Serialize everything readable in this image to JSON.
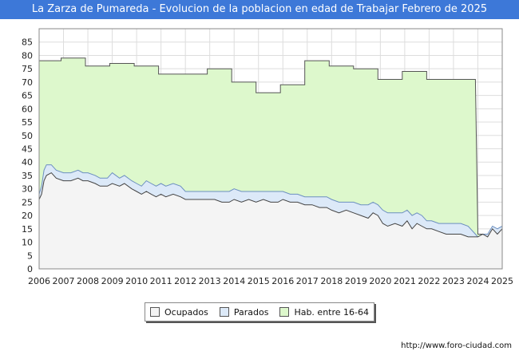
{
  "chart_data": {
    "type": "area",
    "title": "La Zarza de Pumareda - Evolucion de la poblacion en edad de Trabajar Febrero de 2025",
    "xlabel": "",
    "ylabel": "",
    "xlim": [
      2006,
      2025
    ],
    "ylim": [
      0,
      90
    ],
    "yticks": [
      0,
      5,
      10,
      15,
      20,
      25,
      30,
      35,
      40,
      45,
      50,
      55,
      60,
      65,
      70,
      75,
      80,
      85
    ],
    "xticks": [
      "2006",
      "2007",
      "2008",
      "2009",
      "2010",
      "2011",
      "2012",
      "2013",
      "2014",
      "2015",
      "2016",
      "2017",
      "2018",
      "2019",
      "2020",
      "2021",
      "2022",
      "2023",
      "2024",
      "2025"
    ],
    "grid": true,
    "legend_position": "bottom",
    "series": [
      {
        "name": "Ocupados",
        "color": "#f4f4f4",
        "stroke": "#444444",
        "x": [
          2006.0,
          2006.1,
          2006.2,
          2006.3,
          2006.5,
          2006.7,
          2007.0,
          2007.3,
          2007.6,
          2007.8,
          2008.0,
          2008.3,
          2008.5,
          2008.8,
          2009.0,
          2009.3,
          2009.5,
          2009.8,
          2010.0,
          2010.2,
          2010.4,
          2010.6,
          2010.8,
          2011.0,
          2011.2,
          2011.5,
          2011.8,
          2012.0,
          2012.3,
          2012.6,
          2012.9,
          2013.2,
          2013.5,
          2013.8,
          2014.0,
          2014.3,
          2014.6,
          2014.9,
          2015.2,
          2015.5,
          2015.8,
          2016.0,
          2016.3,
          2016.6,
          2016.9,
          2017.2,
          2017.5,
          2017.8,
          2018.0,
          2018.3,
          2018.6,
          2018.9,
          2019.2,
          2019.5,
          2019.7,
          2019.9,
          2020.1,
          2020.3,
          2020.6,
          2020.9,
          2021.1,
          2021.3,
          2021.5,
          2021.7,
          2021.9,
          2022.1,
          2022.4,
          2022.7,
          2023.0,
          2023.3,
          2023.6,
          2023.9,
          2024.0,
          2024.2,
          2024.4,
          2024.6,
          2024.8,
          2025.0
        ],
        "values": [
          26,
          28,
          33,
          35,
          36,
          34,
          33,
          33,
          34,
          33,
          33,
          32,
          31,
          31,
          32,
          31,
          32,
          30,
          29,
          28,
          29,
          28,
          27,
          28,
          27,
          28,
          27,
          26,
          26,
          26,
          26,
          26,
          25,
          25,
          26,
          25,
          26,
          25,
          26,
          25,
          25,
          26,
          25,
          25,
          24,
          24,
          23,
          23,
          22,
          21,
          22,
          21,
          20,
          19,
          21,
          20,
          17,
          16,
          17,
          16,
          18,
          15,
          17,
          16,
          15,
          15,
          14,
          13,
          13,
          13,
          12,
          12,
          12,
          13,
          12,
          15,
          13,
          15
        ]
      },
      {
        "name": "Parados",
        "color": "#dce9f8",
        "stroke": "#6c8fc0",
        "x": [
          2006.0,
          2006.1,
          2006.2,
          2006.3,
          2006.5,
          2006.7,
          2007.0,
          2007.3,
          2007.6,
          2007.8,
          2008.0,
          2008.3,
          2008.5,
          2008.8,
          2009.0,
          2009.3,
          2009.5,
          2009.8,
          2010.0,
          2010.2,
          2010.4,
          2010.6,
          2010.8,
          2011.0,
          2011.2,
          2011.5,
          2011.8,
          2012.0,
          2012.3,
          2012.6,
          2012.9,
          2013.2,
          2013.5,
          2013.8,
          2014.0,
          2014.3,
          2014.6,
          2014.9,
          2015.2,
          2015.5,
          2015.8,
          2016.0,
          2016.3,
          2016.6,
          2016.9,
          2017.2,
          2017.5,
          2017.8,
          2018.0,
          2018.3,
          2018.6,
          2018.9,
          2019.2,
          2019.5,
          2019.7,
          2019.9,
          2020.1,
          2020.3,
          2020.6,
          2020.9,
          2021.1,
          2021.3,
          2021.5,
          2021.7,
          2021.9,
          2022.1,
          2022.4,
          2022.7,
          2023.0,
          2023.3,
          2023.6,
          2023.9,
          2024.0,
          2024.2,
          2024.4,
          2024.6,
          2024.8,
          2025.0
        ],
        "values": [
          2,
          3,
          4,
          4,
          3,
          3,
          3,
          3,
          3,
          3,
          3,
          3,
          3,
          3,
          4,
          3,
          3,
          3,
          3,
          3,
          4,
          4,
          4,
          4,
          4,
          4,
          4,
          3,
          3,
          3,
          3,
          3,
          4,
          4,
          4,
          4,
          3,
          4,
          3,
          4,
          4,
          3,
          3,
          3,
          3,
          3,
          4,
          4,
          4,
          4,
          3,
          4,
          4,
          5,
          4,
          4,
          5,
          5,
          4,
          5,
          4,
          5,
          4,
          4,
          3,
          3,
          3,
          4,
          4,
          4,
          4,
          1,
          0,
          0,
          1,
          1,
          2,
          1
        ]
      },
      {
        "name": "Hab. entre 16-64",
        "color": "#ddf8cc",
        "stroke": "#555555",
        "x": [
          2006.0,
          2006.9,
          2006.9,
          2007.9,
          2007.9,
          2008.9,
          2008.9,
          2009.9,
          2009.9,
          2010.9,
          2010.9,
          2011.9,
          2011.9,
          2012.9,
          2012.9,
          2013.9,
          2013.9,
          2014.9,
          2014.9,
          2015.9,
          2015.9,
          2016.9,
          2016.9,
          2017.9,
          2017.9,
          2018.9,
          2018.9,
          2019.9,
          2019.9,
          2020.9,
          2020.9,
          2021.9,
          2021.9,
          2022.9,
          2022.9,
          2023.9,
          2024.0,
          2025.0
        ],
        "values": [
          78,
          78,
          79,
          79,
          76,
          76,
          77,
          77,
          76,
          76,
          73,
          73,
          73,
          73,
          75,
          75,
          70,
          70,
          66,
          66,
          69,
          69,
          78,
          78,
          76,
          76,
          75,
          75,
          71,
          71,
          74,
          74,
          71,
          71,
          71,
          71,
          13,
          13
        ]
      }
    ]
  },
  "legend": {
    "items": [
      {
        "label": "Ocupados",
        "color": "#f4f4f4"
      },
      {
        "label": "Parados",
        "color": "#dce9f8"
      },
      {
        "label": "Hab. entre 16-64",
        "color": "#ddf8cc"
      }
    ]
  },
  "footer": {
    "url": "http://www.foro-ciudad.com"
  }
}
